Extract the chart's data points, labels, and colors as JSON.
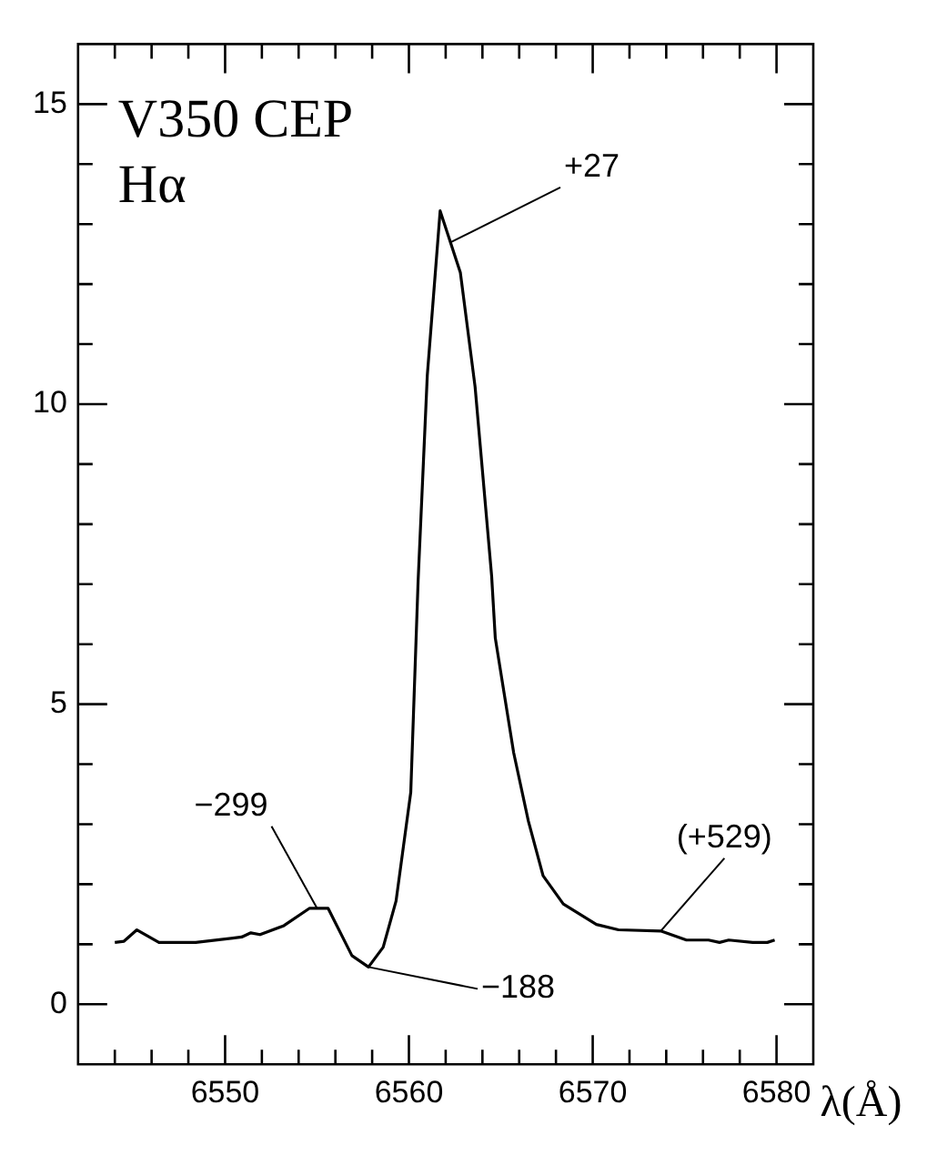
{
  "chart_data": {
    "type": "line",
    "title": "V350 CEP",
    "subtitle": "Hα",
    "xlabel": "λ(Å)",
    "x": [
      6544.0,
      6544.5,
      6545.2,
      6546.4,
      6548.4,
      6550.9,
      6551.4,
      6551.9,
      6553.2,
      6554.6,
      6555.6,
      6556.9,
      6557.8,
      6558.6,
      6559.3,
      6560.1,
      6560.5,
      6561.0,
      6561.7,
      6562.8,
      6563.6,
      6564.5,
      6564.7,
      6565.7,
      6566.5,
      6567.3,
      6568.4,
      6570.2,
      6571.4,
      6573.7,
      6575.1,
      6576.3,
      6576.9,
      6577.4,
      6578.7,
      6579.5,
      6579.9
    ],
    "series": [
      {
        "color": "#000000",
        "values": [
          1.03,
          1.05,
          1.24,
          1.03,
          1.03,
          1.12,
          1.19,
          1.16,
          1.31,
          1.6,
          1.6,
          0.81,
          0.62,
          0.95,
          1.72,
          3.53,
          7.05,
          10.48,
          13.22,
          12.19,
          10.29,
          7.14,
          6.1,
          4.19,
          3.05,
          2.14,
          1.67,
          1.33,
          1.24,
          1.22,
          1.07,
          1.07,
          1.03,
          1.07,
          1.03,
          1.03,
          1.07
        ]
      }
    ],
    "xlim": [
      6542,
      6582
    ],
    "xticks": [
      {
        "value": 6544,
        "label": null
      },
      {
        "value": 6546,
        "label": null
      },
      {
        "value": 6548,
        "label": null
      },
      6550,
      {
        "value": 6552,
        "label": null
      },
      {
        "value": 6554,
        "label": null
      },
      {
        "value": 6556,
        "label": null
      },
      {
        "value": 6558,
        "label": null
      },
      6560,
      {
        "value": 6562,
        "label": null
      },
      {
        "value": 6564,
        "label": null
      },
      {
        "value": 6566,
        "label": null
      },
      {
        "value": 6568,
        "label": null
      },
      6570,
      {
        "value": 6572,
        "label": null
      },
      {
        "value": 6574,
        "label": null
      },
      {
        "value": 6576,
        "label": null
      },
      {
        "value": 6578,
        "label": null
      },
      6580
    ],
    "ylim": [
      -1,
      16
    ],
    "yticks": [
      0,
      {
        "value": 1,
        "label": null
      },
      {
        "value": 2,
        "label": null
      },
      {
        "value": 3,
        "label": null
      },
      {
        "value": 4,
        "label": null
      },
      5,
      {
        "value": 6,
        "label": null
      },
      {
        "value": 7,
        "label": null
      },
      {
        "value": 8,
        "label": null
      },
      {
        "value": 9,
        "label": null
      },
      10,
      {
        "value": 11,
        "label": null
      },
      {
        "value": 12,
        "label": null
      },
      {
        "value": 13,
        "label": null
      },
      {
        "value": 14,
        "label": null
      },
      15
    ],
    "annotations": [
      {
        "text": "+27",
        "x": 6562.3,
        "y": 12.7
      },
      {
        "text": "−299",
        "x": 6555.0,
        "y": 1.6
      },
      {
        "text": "−188",
        "x": 6557.8,
        "y": 0.62
      },
      {
        "text": "(+529)",
        "x": 6573.7,
        "y": 1.22
      }
    ],
    "marker": "none",
    "line_style": "solid",
    "grid": false,
    "legend": false
  }
}
